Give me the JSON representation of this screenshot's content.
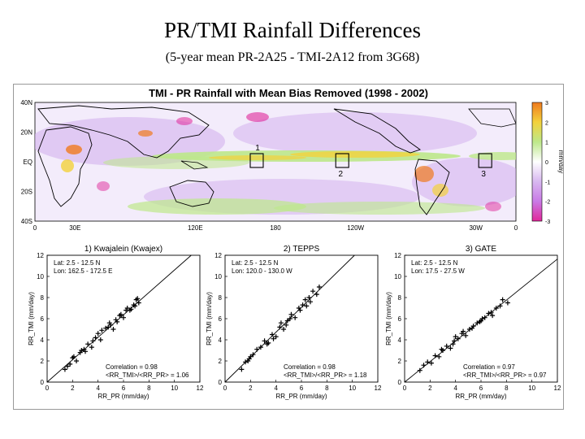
{
  "slide": {
    "title": "PR/TMI Rainfall Differences",
    "subtitle": "(5-year mean PR-2A25 - TMI-2A12 from 3G68)"
  },
  "map": {
    "title": "TMI - PR Rainfall with Mean Bias Removed (1998 - 2002)",
    "lat_labels": [
      "40N",
      "20N",
      "EQ",
      "20S",
      "40S"
    ],
    "lon_labels": [
      "0",
      "30E",
      "120E",
      "180",
      "120W",
      "30W",
      "0"
    ],
    "colorbar": {
      "unit": "mm/day",
      "ticks": [
        "3",
        "2",
        "1",
        "0",
        "-1",
        "-2",
        "-3"
      ],
      "colors": [
        "#f07a1e",
        "#f3d23c",
        "#bde88a",
        "#ffffff",
        "#d8b8f0",
        "#c97ae6",
        "#e0279a"
      ]
    },
    "boxes": [
      {
        "label": "1",
        "lon": 166,
        "lat": 0
      },
      {
        "label": "2",
        "lon": 230,
        "lat": 0
      },
      {
        "label": "3",
        "lon": 337,
        "lat": 0
      }
    ]
  },
  "chart_data": [
    {
      "type": "scatter",
      "title": "1) Kwajalein (Kwajex)",
      "annotation_lines": [
        "Lat: 2.5 - 12.5 N",
        "Lon: 162.5 - 172.5 E"
      ],
      "stats": [
        "Correlation = 0.98",
        "<RR_TMI>/<RR_PR> = 1.06"
      ],
      "xlabel": "RR_PR (mm/day)",
      "ylabel": "RR_TMI (mm/day)",
      "xlim": [
        0,
        12
      ],
      "ylim": [
        0,
        12
      ],
      "xticks": [
        "0",
        "2",
        "4",
        "6",
        "8",
        "10",
        "12"
      ],
      "yticks": [
        "0",
        "2",
        "4",
        "6",
        "8",
        "10",
        "12"
      ],
      "slope": 1.06,
      "x": [
        1.4,
        1.8,
        2.1,
        2.3,
        2.6,
        2.9,
        3.2,
        3.5,
        3.8,
        4.0,
        4.3,
        4.6,
        4.9,
        5.2,
        5.4,
        5.7,
        6.0,
        6.3,
        6.5,
        6.8,
        7.0,
        7.2,
        2.0,
        3.0,
        4.2,
        5.0,
        5.8,
        6.6,
        2.7,
        4.8,
        6.2,
        7.1,
        3.6,
        5.5,
        6.9,
        1.6
      ],
      "y": [
        1.2,
        1.7,
        2.4,
        2.0,
        2.8,
        3.1,
        3.6,
        3.3,
        4.2,
        4.6,
        4.9,
        5.1,
        5.6,
        5.0,
        5.9,
        6.3,
        6.1,
        7.0,
        6.8,
        7.3,
        7.8,
        7.5,
        2.3,
        2.9,
        4.0,
        5.4,
        6.4,
        6.9,
        3.0,
        5.2,
        6.8,
        7.9,
        3.9,
        5.7,
        7.2,
        1.5
      ]
    },
    {
      "type": "scatter",
      "title": "2) TEPPS",
      "annotation_lines": [
        "Lat: 2.5 - 12.5 N",
        "Lon: 120.0 - 130.0 W"
      ],
      "stats": [
        "Correlation = 0.98",
        "<RR_TMI>/<RR_PR> = 1.18"
      ],
      "xlabel": "RR_PR (mm/day)",
      "ylabel": "RR_TMI (mm/day)",
      "xlim": [
        0,
        12
      ],
      "ylim": [
        0,
        12
      ],
      "xticks": [
        "0",
        "2",
        "4",
        "6",
        "8",
        "10",
        "12"
      ],
      "yticks": [
        "0",
        "2",
        "4",
        "6",
        "8",
        "10",
        "12"
      ],
      "slope": 1.18,
      "x": [
        1.3,
        1.6,
        1.9,
        2.2,
        2.5,
        2.8,
        3.1,
        3.4,
        3.7,
        4.0,
        4.3,
        4.6,
        4.9,
        5.2,
        5.5,
        5.8,
        6.1,
        6.3,
        6.6,
        6.9,
        7.2,
        2.0,
        3.3,
        4.4,
        5.1,
        5.9,
        6.7,
        3.8,
        4.8,
        6.4,
        1.8,
        7.4
      ],
      "y": [
        1.2,
        1.9,
        2.2,
        2.6,
        3.1,
        3.3,
        3.9,
        3.7,
        4.5,
        4.3,
        5.2,
        5.0,
        5.8,
        6.4,
        6.1,
        7.0,
        7.3,
        7.8,
        8.0,
        8.6,
        8.3,
        2.4,
        3.6,
        5.6,
        6.0,
        6.8,
        7.6,
        4.1,
        5.4,
        7.2,
        2.0,
        9.0
      ]
    },
    {
      "type": "scatter",
      "title": "3) GATE",
      "annotation_lines": [
        "Lat: 2.5 - 12.5 N",
        "Lon: 17.5 - 27.5 W"
      ],
      "stats": [
        "Correlation = 0.97",
        "<RR_TMI>/<RR_PR> = 0.97"
      ],
      "xlabel": "RR_PR (mm/day)",
      "ylabel": "RR_TMI (mm/day)",
      "xlim": [
        0,
        12
      ],
      "ylim": [
        0,
        12
      ],
      "xticks": [
        "0",
        "2",
        "4",
        "6",
        "8",
        "10",
        "12"
      ],
      "yticks": [
        "0",
        "2",
        "4",
        "6",
        "8",
        "10",
        "12"
      ],
      "slope": 0.97,
      "x": [
        1.2,
        1.5,
        1.8,
        2.1,
        2.4,
        2.7,
        3.0,
        3.3,
        3.6,
        3.9,
        4.2,
        4.5,
        4.8,
        5.1,
        5.4,
        5.7,
        6.0,
        6.3,
        6.6,
        6.9,
        7.2,
        7.5,
        8.1,
        2.9,
        3.8,
        4.6,
        5.3,
        6.1,
        6.8,
        7.7,
        4.0,
        5.9
      ],
      "y": [
        1.1,
        1.6,
        1.9,
        1.8,
        2.5,
        2.4,
        3.0,
        3.4,
        3.2,
        3.9,
        4.1,
        4.6,
        4.4,
        5.0,
        5.3,
        5.6,
        5.8,
        6.1,
        6.5,
        6.3,
        7.0,
        7.2,
        7.5,
        3.1,
        3.6,
        4.8,
        5.1,
        6.0,
        6.6,
        7.8,
        4.3,
        5.7
      ]
    }
  ]
}
